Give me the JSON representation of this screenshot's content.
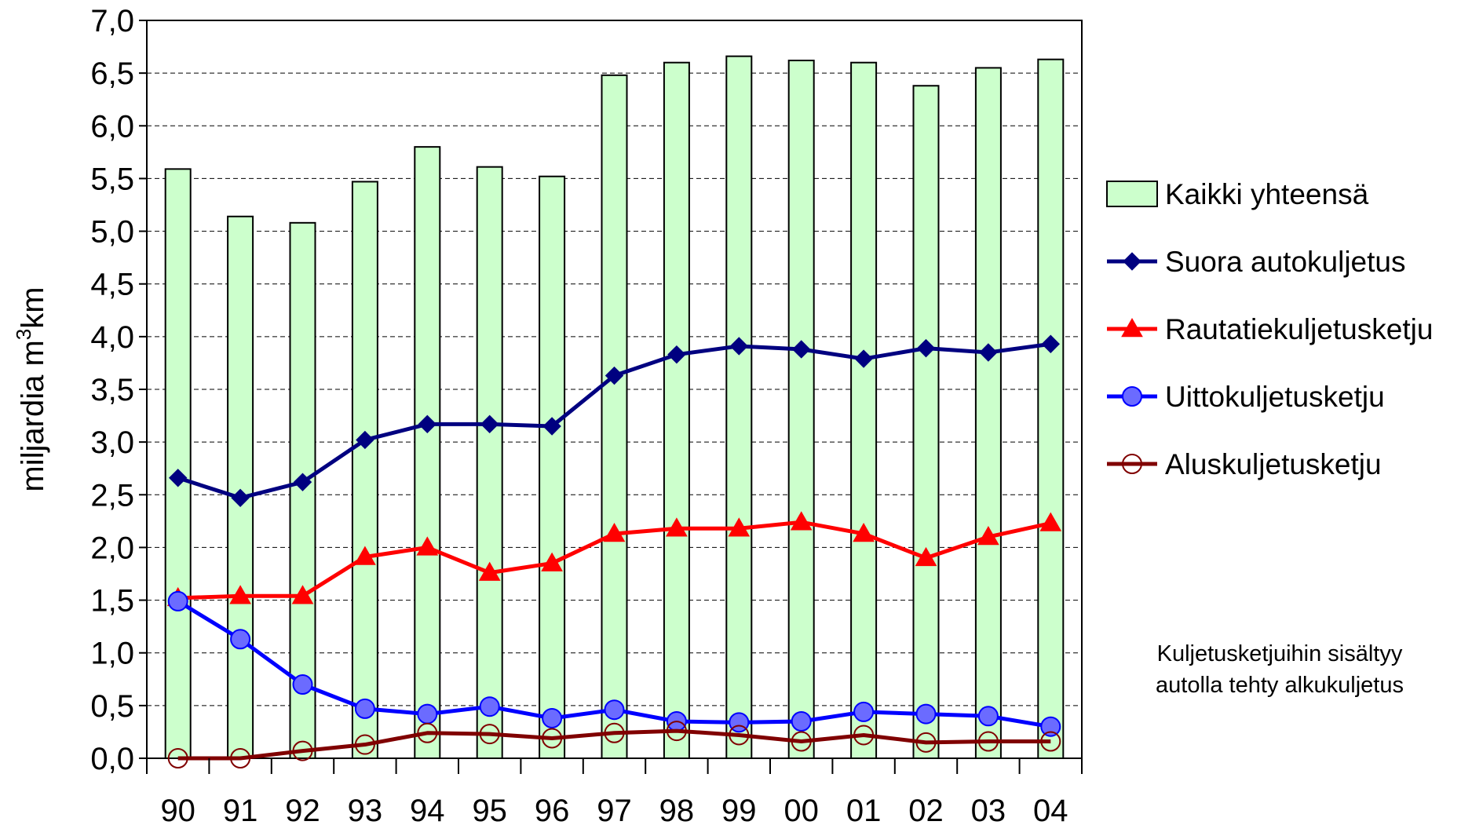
{
  "chart_data": {
    "type": "bar",
    "categories": [
      "90",
      "91",
      "92",
      "93",
      "94",
      "95",
      "96",
      "97",
      "98",
      "99",
      "00",
      "01",
      "02",
      "03",
      "04"
    ],
    "ylabel": "miljardia m",
    "ylabel_sup": "3",
    "ylabel_suffix": "km",
    "ylim": [
      0,
      7.0
    ],
    "yticks": [
      0,
      0.5,
      1.0,
      1.5,
      2.0,
      2.5,
      3.0,
      3.5,
      4.0,
      4.5,
      5.0,
      5.5,
      6.0,
      6.5,
      7.0
    ],
    "ytick_labels": [
      "0,0",
      "0,5",
      "1,0",
      "1,5",
      "2,0",
      "2,5",
      "3,0",
      "3,5",
      "4,0",
      "4,5",
      "5,0",
      "5,5",
      "6,0",
      "6,5",
      "7,0"
    ],
    "grid": true,
    "legend_position": "right",
    "series": [
      {
        "name": "Kaikki yhteensä",
        "type": "bar",
        "color": "#ccffcc",
        "values": [
          5.59,
          5.14,
          5.08,
          5.47,
          5.8,
          5.61,
          5.52,
          6.48,
          6.6,
          6.66,
          6.62,
          6.6,
          6.38,
          6.55,
          6.63
        ]
      },
      {
        "name": "Suora autokuljetus",
        "type": "line",
        "marker": "diamond",
        "color": "#000080",
        "values": [
          2.66,
          2.47,
          2.62,
          3.02,
          3.17,
          3.17,
          3.15,
          3.63,
          3.83,
          3.91,
          3.88,
          3.79,
          3.89,
          3.85,
          3.93
        ]
      },
      {
        "name": "Rautatiekuljetusketju",
        "type": "line",
        "marker": "triangle",
        "color": "#ff0000",
        "values": [
          1.52,
          1.54,
          1.54,
          1.91,
          2.0,
          1.76,
          1.85,
          2.13,
          2.18,
          2.18,
          2.24,
          2.13,
          1.9,
          2.1,
          2.23
        ]
      },
      {
        "name": "Uittokuljetusketju",
        "type": "line",
        "marker": "circle",
        "color": "#0000ff",
        "values": [
          1.49,
          1.13,
          0.7,
          0.47,
          0.42,
          0.49,
          0.38,
          0.46,
          0.35,
          0.34,
          0.35,
          0.44,
          0.42,
          0.4,
          0.3
        ]
      },
      {
        "name": "Aluskuljetusketju",
        "type": "line",
        "marker": "hollow-circle",
        "color": "#800000",
        "values": [
          0.0,
          0.0,
          0.07,
          0.13,
          0.24,
          0.23,
          0.19,
          0.24,
          0.26,
          0.22,
          0.16,
          0.22,
          0.15,
          0.16,
          0.16
        ]
      }
    ],
    "annotation_lines": [
      "Kuljetusketjuihin sisältyy",
      "autolla tehty alkukuljetus"
    ]
  }
}
